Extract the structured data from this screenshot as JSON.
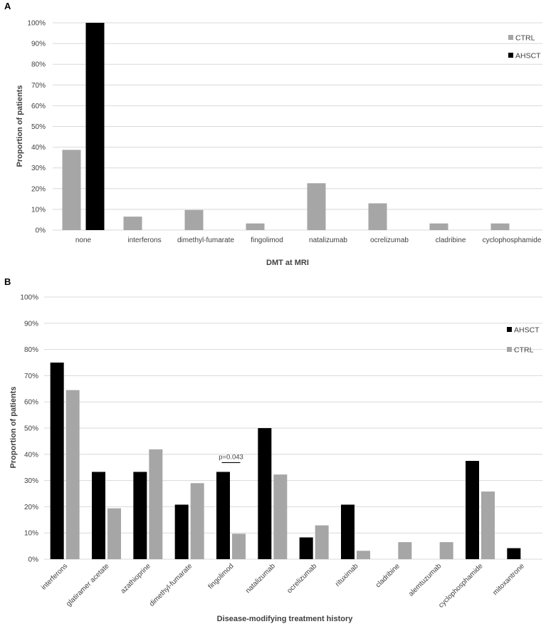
{
  "panels": {
    "a": {
      "letter": "A"
    },
    "b": {
      "letter": "B"
    }
  },
  "colors": {
    "ctrl": "#a6a6a6",
    "ahsct": "#000000",
    "grid": "#d9d9d9",
    "text": "#404040"
  },
  "chart_data": [
    {
      "type": "bar",
      "panel": "A",
      "xlabel": "DMT at MRI",
      "ylabel": "Proportion of patients",
      "ylim": [
        0,
        100
      ],
      "yticks": [
        "0%",
        "10%",
        "20%",
        "30%",
        "40%",
        "50%",
        "60%",
        "70%",
        "80%",
        "90%",
        "100%"
      ],
      "grid": true,
      "legend_position": "top-right",
      "categories": [
        "none",
        "interferons",
        "dimethyl-fumarate",
        "fingolimod",
        "natalizumab",
        "ocrelizumab",
        "cladribine",
        "cyclophosphamide"
      ],
      "series": [
        {
          "name": "CTRL",
          "color": "#a6a6a6",
          "values": [
            38.7,
            6.5,
            9.7,
            3.2,
            22.6,
            12.9,
            3.2,
            3.2
          ]
        },
        {
          "name": "AHSCT",
          "color": "#000000",
          "values": [
            100,
            0,
            0,
            0,
            0,
            0,
            0,
            0
          ]
        }
      ]
    },
    {
      "type": "bar",
      "panel": "B",
      "xlabel": "Disease-modifying treatment history",
      "ylabel": "Proportion of patients",
      "ylim": [
        0,
        100
      ],
      "yticks": [
        "0%",
        "10%",
        "20%",
        "30%",
        "40%",
        "50%",
        "60%",
        "70%",
        "80%",
        "90%",
        "100%"
      ],
      "grid": true,
      "legend_position": "top-right",
      "categories": [
        "interferons",
        "glatiramer acetate",
        "azathioprine",
        "dimethyl-fumarate",
        "fingolimod",
        "natalizumab",
        "ocrelizumab",
        "rituximab",
        "cladribine",
        "alemtuzumab",
        "cyclophosphamide",
        "mitoxantrone"
      ],
      "series": [
        {
          "name": "AHSCT",
          "color": "#000000",
          "values": [
            75,
            33.3,
            33.3,
            20.8,
            33.3,
            50,
            8.3,
            20.8,
            0,
            0,
            37.5,
            4.2
          ]
        },
        {
          "name": "CTRL",
          "color": "#a6a6a6",
          "values": [
            64.5,
            19.4,
            41.9,
            29,
            9.7,
            32.3,
            12.9,
            3.2,
            6.5,
            6.5,
            25.8,
            0
          ]
        }
      ],
      "annotations": [
        {
          "text": "p=0.043",
          "category": "fingolimod"
        }
      ]
    }
  ]
}
